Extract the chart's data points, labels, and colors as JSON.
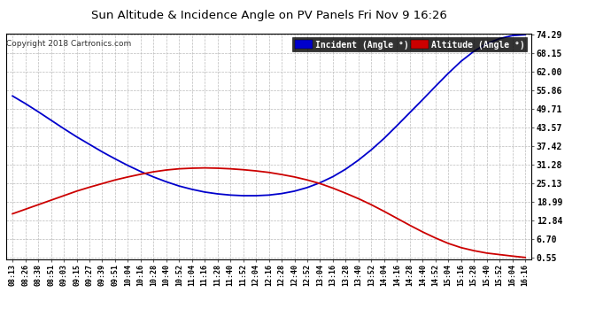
{
  "title": "Sun Altitude & Incidence Angle on PV Panels Fri Nov 9 16:26",
  "copyright": "Copyright 2018 Cartronics.com",
  "legend_altitude": "Altitude (Angle °)",
  "yticks": [
    0.55,
    6.7,
    12.84,
    18.99,
    25.13,
    31.28,
    37.42,
    43.57,
    49.71,
    55.86,
    62.0,
    68.15,
    74.29
  ],
  "xtick_labels": [
    "08:13",
    "08:26",
    "08:38",
    "08:51",
    "09:03",
    "09:15",
    "09:27",
    "09:39",
    "09:51",
    "10:04",
    "10:16",
    "10:28",
    "10:40",
    "10:52",
    "11:04",
    "11:16",
    "11:28",
    "11:40",
    "11:52",
    "12:04",
    "12:16",
    "12:28",
    "12:40",
    "12:52",
    "13:04",
    "13:16",
    "13:28",
    "13:40",
    "13:52",
    "14:04",
    "14:16",
    "14:28",
    "14:40",
    "14:52",
    "15:04",
    "15:16",
    "15:28",
    "15:40",
    "15:52",
    "16:04",
    "16:16"
  ],
  "bg_color": "#ffffff",
  "grid_color": "#bbbbbb",
  "incident_color": "#0000cc",
  "altitude_color": "#cc0000",
  "title_color": "#000000",
  "legend_incident_bg": "#0000cc",
  "legend_altitude_bg": "#cc0000",
  "ylim_min": 0.55,
  "ylim_max": 74.29,
  "incident_values": [
    54.0,
    51.5,
    48.8,
    46.0,
    43.2,
    40.5,
    38.0,
    35.5,
    33.2,
    31.0,
    29.0,
    27.2,
    25.6,
    24.2,
    23.1,
    22.2,
    21.6,
    21.2,
    21.0,
    21.0,
    21.2,
    21.7,
    22.5,
    23.7,
    25.3,
    27.3,
    29.8,
    32.8,
    36.2,
    40.0,
    44.2,
    48.5,
    52.8,
    57.2,
    61.5,
    65.5,
    68.8,
    71.3,
    73.0,
    74.0,
    74.29
  ],
  "altitude_values": [
    15.0,
    16.5,
    18.0,
    19.5,
    21.0,
    22.5,
    23.8,
    25.0,
    26.2,
    27.2,
    28.1,
    28.9,
    29.5,
    29.9,
    30.1,
    30.2,
    30.1,
    29.9,
    29.6,
    29.2,
    28.7,
    28.0,
    27.2,
    26.2,
    25.0,
    23.5,
    21.8,
    20.0,
    18.0,
    15.8,
    13.5,
    11.2,
    9.0,
    7.0,
    5.2,
    3.8,
    2.8,
    2.0,
    1.5,
    1.0,
    0.55
  ]
}
